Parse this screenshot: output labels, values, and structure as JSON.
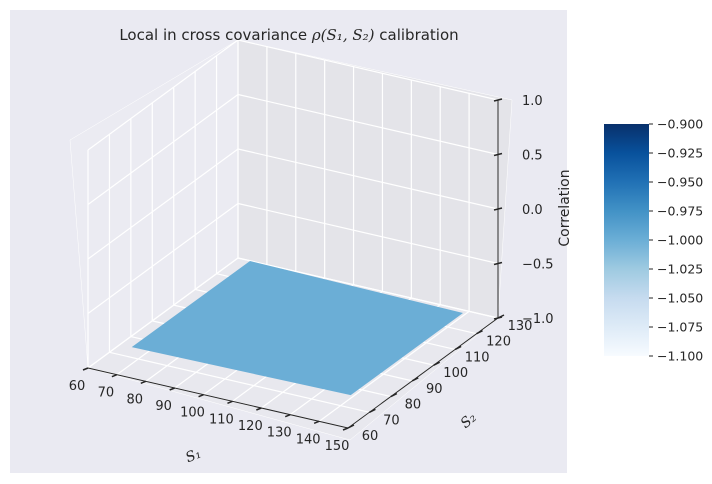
{
  "chart_data": {
    "type": "surface",
    "title_prefix": "Local in cross covariance ",
    "title_math": "ρ(S₁, S₂)",
    "title_suffix": " calibration",
    "xlabel": "S₁",
    "ylabel": "S₂",
    "zlabel": "Correlation",
    "x_ticks": [
      "60",
      "70",
      "80",
      "90",
      "100",
      "110",
      "120",
      "130",
      "140",
      "150"
    ],
    "y_ticks": [
      "60",
      "70",
      "80",
      "90",
      "100",
      "110",
      "120",
      "130"
    ],
    "z_ticks": [
      "−1.0",
      "−0.5",
      "0.0",
      "0.5",
      "1.0"
    ],
    "xlim": [
      60,
      150
    ],
    "ylim": [
      60,
      130
    ],
    "zlim": [
      -1.0,
      1.0
    ],
    "surface_value": -1.0,
    "surface_color": "#6baed6",
    "colormap": "Blues",
    "colorbar": {
      "ticks": [
        "−0.900",
        "−0.925",
        "−0.950",
        "−0.975",
        "−1.000",
        "−1.025",
        "−1.050",
        "−1.075",
        "−1.100"
      ],
      "range": [
        -1.1,
        -0.9
      ],
      "color_low": "#f7fbff",
      "color_high": "#08306b"
    },
    "grid": true,
    "pane_color": "#eaeaf2"
  }
}
